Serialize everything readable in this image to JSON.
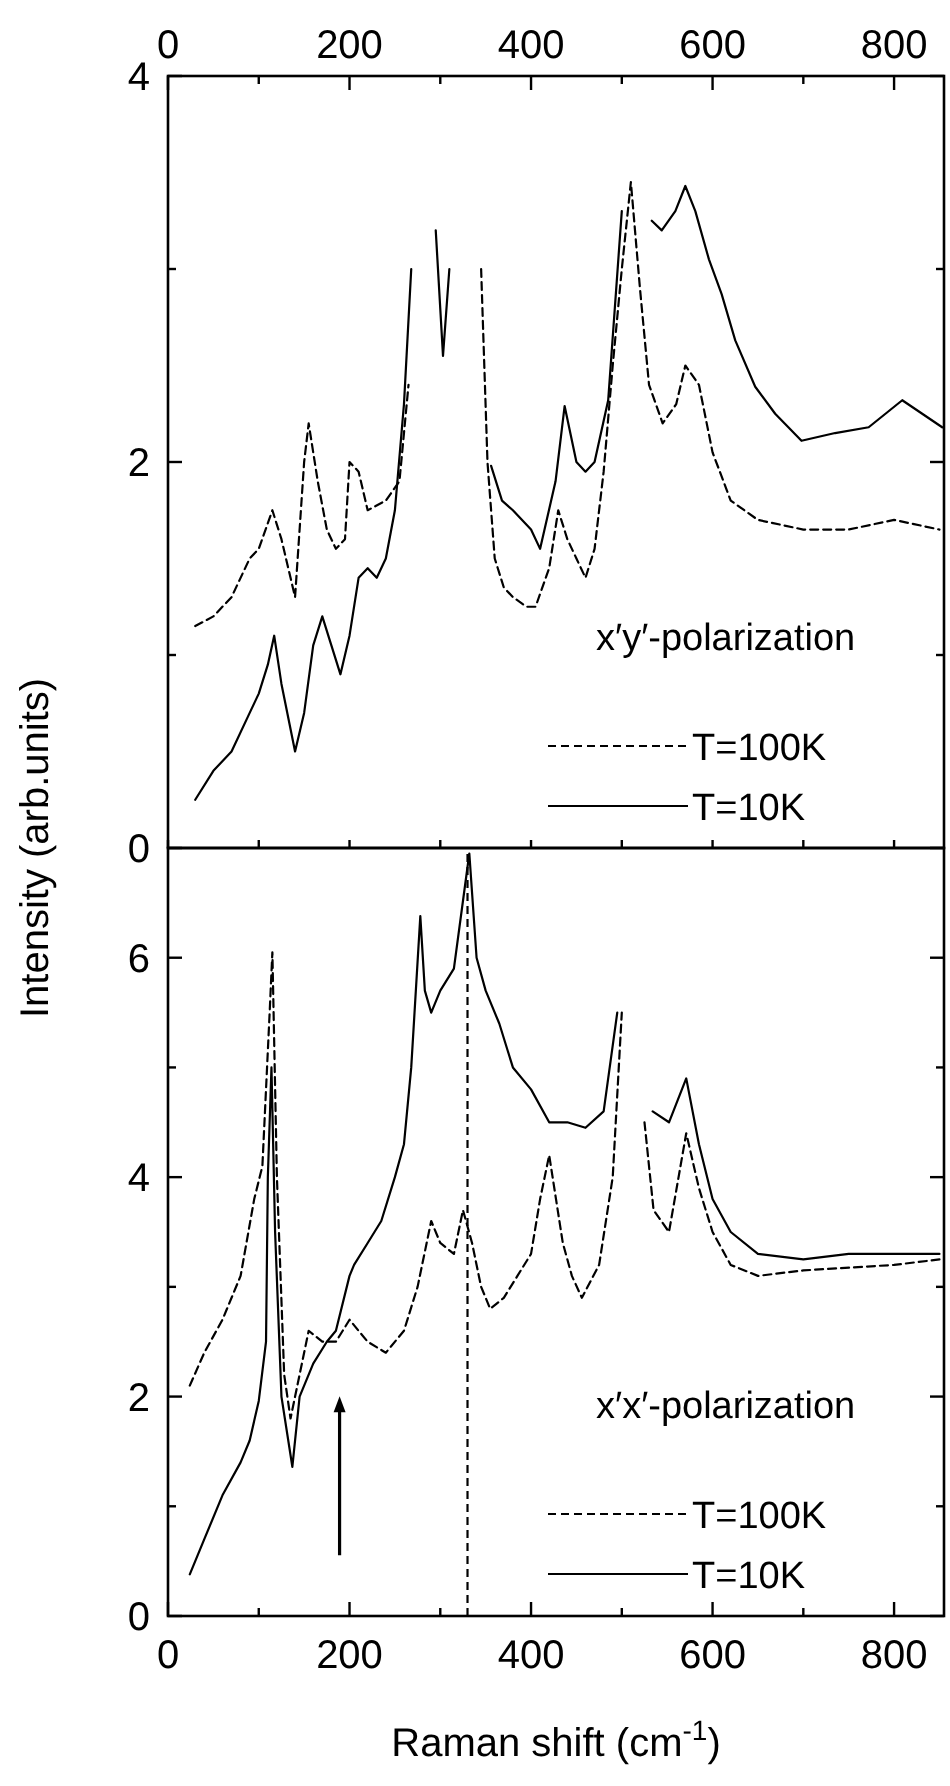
{
  "chart_data": [
    {
      "type": "line",
      "ylabel": "Intensity  (arb.units)",
      "xlim": [
        0,
        855
      ],
      "ylim": [
        0,
        4
      ],
      "xticks": [
        {
          "value": 0,
          "label": null
        },
        {
          "value": 100,
          "label": null
        },
        {
          "value": 200,
          "label": null
        },
        {
          "value": 300,
          "label": null
        },
        {
          "value": 400,
          "label": null
        },
        {
          "value": 500,
          "label": null
        },
        {
          "value": 600,
          "label": null
        },
        {
          "value": 700,
          "label": null
        },
        {
          "value": 800,
          "label": null
        }
      ],
      "x2lim": [
        0,
        855
      ],
      "x2ticks": [
        0,
        {
          "value": 100,
          "label": null
        },
        200,
        {
          "value": 300,
          "label": null
        },
        400,
        {
          "value": 500,
          "label": null
        },
        600,
        {
          "value": 700,
          "label": null
        },
        800
      ],
      "yticks": [
        0,
        {
          "value": 1,
          "label": null
        },
        2,
        {
          "value": 3,
          "label": null
        },
        4
      ],
      "tick_labels": "y",
      "legend": "bottom right",
      "annotations": [
        "x′y′-polarization"
      ],
      "series": [
        {
          "name": "T=100K",
          "color": "#000000",
          "line_style": "dashed",
          "x": [
            30,
            50,
            70,
            90,
            100,
            115,
            125,
            140,
            150,
            155,
            165,
            175,
            185,
            195,
            200,
            210,
            220,
            240,
            255,
            265,
            275,
            290,
            338,
            345,
            352,
            360,
            370,
            380,
            395,
            405,
            420,
            430,
            440,
            450,
            460,
            470,
            480,
            490,
            500,
            510,
            520,
            530,
            545,
            560,
            570,
            585,
            600,
            620,
            650,
            700,
            750,
            800,
            850
          ],
          "values": [
            1.15,
            1.2,
            1.3,
            1.5,
            1.55,
            1.75,
            1.6,
            1.3,
            2.0,
            2.2,
            1.9,
            1.65,
            1.55,
            1.6,
            2.0,
            1.95,
            1.75,
            1.8,
            1.9,
            2.4,
            null,
            null,
            null,
            3.0,
            2.0,
            1.5,
            1.35,
            1.3,
            1.25,
            1.25,
            1.45,
            1.75,
            1.6,
            1.5,
            1.4,
            1.55,
            1.95,
            2.5,
            3.0,
            3.45,
            2.9,
            2.4,
            2.2,
            2.3,
            2.5,
            2.4,
            2.05,
            1.8,
            1.7,
            1.65,
            1.65,
            1.7,
            1.65
          ]
        },
        {
          "name": "T=10K",
          "color": "#000000",
          "line_style": "solid",
          "x": [
            30,
            50,
            70,
            90,
            100,
            110,
            117,
            125,
            140,
            150,
            160,
            170,
            180,
            190,
            200,
            210,
            220,
            230,
            240,
            250,
            260,
            268,
            272,
            280,
            288,
            295,
            303,
            310,
            318,
            330,
            345,
            356,
            368,
            380,
            400,
            410,
            427,
            437,
            450,
            460,
            470,
            485,
            500,
            507,
            515,
            522,
            533,
            544,
            559,
            570,
            581,
            596,
            610,
            625,
            647,
            669,
            698,
            735,
            772,
            809,
            831,
            853
          ],
          "values": [
            0.25,
            0.4,
            0.5,
            0.7,
            0.8,
            0.95,
            1.1,
            0.85,
            0.5,
            0.7,
            1.05,
            1.2,
            1.05,
            0.9,
            1.1,
            1.4,
            1.45,
            1.4,
            1.5,
            1.75,
            2.3,
            3.0,
            null,
            null,
            null,
            3.2,
            2.55,
            3.0,
            null,
            null,
            null,
            1.98,
            1.8,
            1.75,
            1.65,
            1.55,
            1.9,
            2.29,
            2.0,
            1.95,
            2.0,
            2.32,
            3.3,
            null,
            null,
            null,
            3.25,
            3.2,
            3.3,
            3.43,
            3.3,
            3.05,
            2.87,
            2.63,
            2.39,
            2.25,
            2.11,
            2.15,
            2.18,
            2.32,
            2.25,
            2.18
          ]
        }
      ]
    },
    {
      "type": "line",
      "xlabel": "Raman shift  (cm$^{-1}$)",
      "xlim": [
        0,
        855
      ],
      "ylim": [
        0,
        7
      ],
      "xticks": [
        0,
        {
          "value": 100,
          "label": null
        },
        200,
        {
          "value": 300,
          "label": null
        },
        400,
        {
          "value": 500,
          "label": null
        },
        600,
        {
          "value": 700,
          "label": null
        },
        800
      ],
      "yticks": [
        0,
        {
          "value": 1,
          "label": null
        },
        2,
        {
          "value": 3,
          "label": null
        },
        4,
        {
          "value": 5,
          "label": null
        },
        6
      ],
      "legend": "bottom right",
      "annotations": [
        "x′x′-polarization"
      ],
      "ref_lines": [
        {
          "axis": "x",
          "value": 330,
          "line_style": "dashed",
          "color": "#000000"
        }
      ],
      "series": [
        {
          "name": "T=100K",
          "color": "#000000",
          "line_style": "dashed",
          "x": [
            24,
            40,
            60,
            80,
            95,
            104,
            112,
            115,
            120,
            128,
            135,
            145,
            155,
            170,
            185,
            200,
            220,
            240,
            260,
            275,
            290,
            300,
            315,
            325,
            335,
            345,
            355,
            370,
            385,
            400,
            410,
            420,
            435,
            445,
            456,
            475,
            490,
            500,
            505,
            511,
            518,
            525,
            535,
            552,
            571,
            585,
            600,
            620,
            650,
            700,
            800,
            850
          ],
          "values": [
            2.1,
            2.4,
            2.7,
            3.1,
            3.8,
            4.1,
            5.5,
            6.05,
            4.0,
            2.2,
            1.8,
            2.2,
            2.6,
            2.5,
            2.5,
            2.7,
            2.5,
            2.4,
            2.6,
            3.0,
            3.6,
            3.4,
            3.3,
            3.7,
            3.4,
            3.0,
            2.8,
            2.9,
            3.1,
            3.3,
            3.8,
            4.2,
            3.4,
            3.1,
            2.9,
            3.2,
            4.0,
            5.5,
            null,
            null,
            null,
            4.5,
            3.7,
            3.5,
            4.4,
            3.9,
            3.5,
            3.2,
            3.1,
            3.15,
            3.2,
            3.25
          ]
        },
        {
          "name": "T=10K",
          "color": "#000000",
          "line_style": "solid",
          "x": [
            24,
            40,
            60,
            80,
            90,
            100,
            108,
            110,
            114,
            118,
            125,
            137,
            145,
            160,
            175,
            185,
            200,
            205,
            220,
            235,
            250,
            260,
            268,
            278,
            283,
            290,
            300,
            315,
            332,
            340,
            350,
            365,
            380,
            400,
            420,
            440,
            460,
            480,
            495,
            500,
            510,
            520,
            534,
            552,
            571,
            585,
            600,
            620,
            650,
            700,
            750,
            800,
            850
          ],
          "values": [
            0.38,
            0.7,
            1.1,
            1.4,
            1.6,
            1.96,
            2.5,
            4.0,
            5.0,
            3.5,
            2.0,
            1.36,
            2.0,
            2.3,
            2.5,
            2.6,
            3.1,
            3.2,
            3.4,
            3.6,
            4.0,
            4.3,
            5.0,
            6.38,
            5.7,
            5.5,
            5.7,
            5.9,
            6.95,
            6.0,
            5.7,
            5.4,
            5.0,
            4.8,
            4.5,
            4.5,
            4.45,
            4.6,
            5.5,
            null,
            null,
            null,
            4.6,
            4.5,
            4.9,
            4.3,
            3.8,
            3.5,
            3.3,
            3.25,
            3.3,
            3.3,
            3.3
          ]
        }
      ]
    }
  ]
}
